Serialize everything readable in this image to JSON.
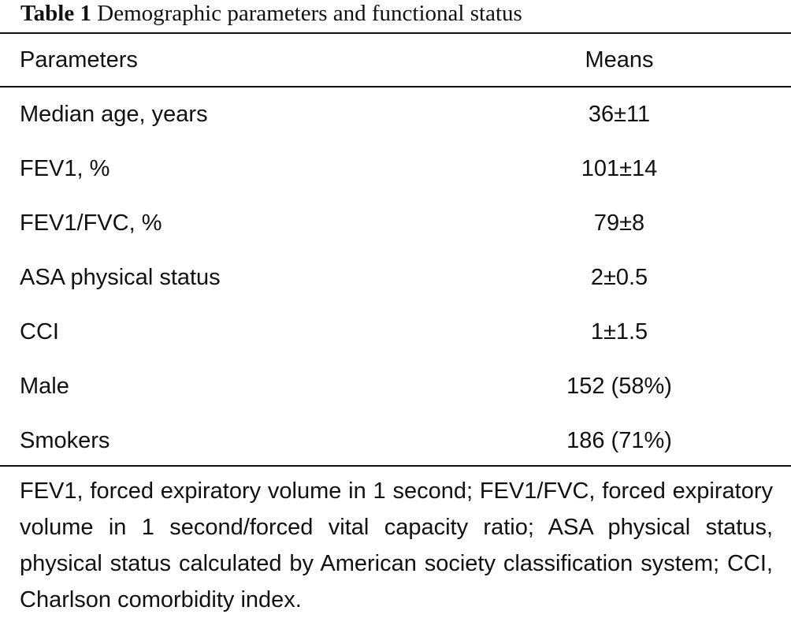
{
  "table": {
    "caption_label": "Table 1",
    "caption_text": "Demographic parameters and functional status",
    "columns": [
      "Parameters",
      "Means"
    ],
    "rows": [
      {
        "parameter": "Median age, years",
        "value": "36±11"
      },
      {
        "parameter": "FEV1, %",
        "value": "101±14"
      },
      {
        "parameter": "FEV1/FVC, %",
        "value": "79±8"
      },
      {
        "parameter": "ASA physical status",
        "value": "2±0.5"
      },
      {
        "parameter": "CCI",
        "value": "1±1.5"
      },
      {
        "parameter": "Male",
        "value": "152 (58%)"
      },
      {
        "parameter": "Smokers",
        "value": "186 (71%)"
      }
    ],
    "footnote": "FEV1, forced expiratory volume in 1 second; FEV1/FVC, forced expiratory volume in 1 second/forced vital capacity ratio; ASA physical status, physical status calculated by American society classification system; CCI, Charlson comorbidity index."
  }
}
